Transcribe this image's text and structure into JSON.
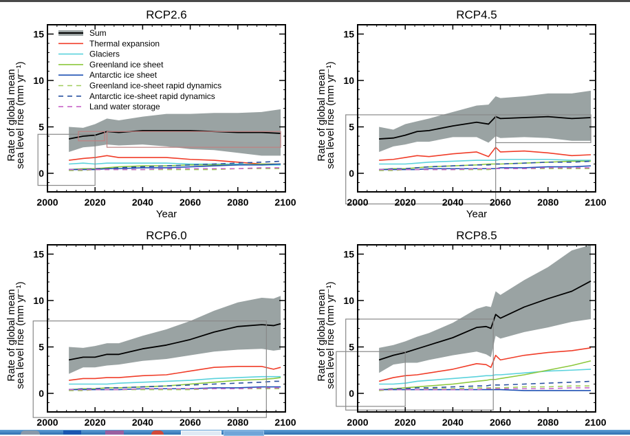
{
  "window": {
    "top_bar_color": "#4a4a4a",
    "taskbar_color": "#3a7fc2"
  },
  "chart_data": [
    {
      "type": "area",
      "title": "RCP2.6",
      "xlabel": "Year",
      "ylabel_line1": "Rate of global mean",
      "ylabel_line2": "sea level rise (mm yr⁻¹)",
      "xlim": [
        2000,
        2100
      ],
      "ylim": [
        -2,
        16
      ],
      "xticks": [
        2000,
        2020,
        2040,
        2060,
        2080,
        2100
      ],
      "yticks": [
        0,
        5,
        10,
        15
      ],
      "show_xlabel": true,
      "legend": true,
      "x": [
        2009,
        2015,
        2020,
        2025,
        2030,
        2040,
        2050,
        2060,
        2070,
        2080,
        2090,
        2098
      ],
      "band": {
        "name": "Sum range",
        "upper": [
          5.0,
          4.9,
          5.3,
          5.9,
          5.7,
          6.1,
          6.4,
          6.4,
          6.5,
          6.5,
          6.6,
          6.9
        ],
        "lower": [
          2.3,
          2.8,
          2.9,
          3.1,
          3.0,
          3.1,
          2.9,
          2.6,
          2.5,
          2.2,
          1.9,
          1.9
        ]
      },
      "series": [
        {
          "name": "Sum",
          "values": [
            3.7,
            4.0,
            4.1,
            4.5,
            4.4,
            4.6,
            4.6,
            4.6,
            4.5,
            4.4,
            4.4,
            4.3
          ]
        },
        {
          "name": "Thermal expansion",
          "values": [
            1.4,
            1.6,
            1.7,
            1.9,
            1.7,
            1.7,
            1.7,
            1.5,
            1.4,
            1.2,
            1.0,
            1.0
          ]
        },
        {
          "name": "Glaciers",
          "values": [
            1.0,
            1.1,
            1.0,
            1.1,
            1.1,
            1.1,
            1.1,
            1.0,
            1.0,
            1.0,
            0.9,
            0.9
          ]
        },
        {
          "name": "Greenland ice sheet",
          "values": [
            0.4,
            0.5,
            0.5,
            0.6,
            0.7,
            0.8,
            0.8,
            0.9,
            0.9,
            0.9,
            1.0,
            1.0
          ]
        },
        {
          "name": "Antarctic ice sheet",
          "values": [
            0.4,
            0.4,
            0.4,
            0.5,
            0.5,
            0.6,
            0.6,
            0.7,
            0.8,
            0.9,
            0.9,
            1.0
          ]
        },
        {
          "name": "Greenland ice-sheet rapid dynamics",
          "values": [
            0.3,
            0.3,
            0.4,
            0.4,
            0.4,
            0.4,
            0.4,
            0.4,
            0.4,
            0.5,
            0.5,
            0.5
          ]
        },
        {
          "name": "Antarctic ice-sheet rapid dynamics",
          "values": [
            0.4,
            0.4,
            0.5,
            0.5,
            0.6,
            0.7,
            0.8,
            0.9,
            1.0,
            1.1,
            1.2,
            1.3
          ]
        },
        {
          "name": "Land water storage",
          "values": [
            0.4,
            0.4,
            0.4,
            0.4,
            0.4,
            0.4,
            0.5,
            0.5,
            0.5,
            0.5,
            0.6,
            0.6
          ]
        }
      ],
      "overlay_boxes": [
        {
          "x0": 1996,
          "x1": 2020,
          "y0": -1.3,
          "y1": 4.2,
          "color": "#888888"
        },
        {
          "x0": 2013,
          "x1": 2024,
          "y0": 3.5,
          "y1": 4.5,
          "color": "#c08080"
        },
        {
          "x0": 2025,
          "x1": 2098,
          "y0": 2.8,
          "y1": 4.5,
          "color": "#c08080"
        }
      ]
    },
    {
      "type": "area",
      "title": "RCP4.5",
      "xlabel": "Year",
      "ylabel_line1": "Rate of global mean",
      "ylabel_line2": "sea level rise (mm yr⁻¹)",
      "xlim": [
        2000,
        2100
      ],
      "ylim": [
        -2,
        16
      ],
      "xticks": [
        2000,
        2020,
        2040,
        2060,
        2080,
        2100
      ],
      "yticks": [
        0,
        5,
        10,
        15
      ],
      "show_xlabel": true,
      "legend": false,
      "x": [
        2009,
        2015,
        2020,
        2025,
        2030,
        2040,
        2050,
        2055,
        2058,
        2060,
        2070,
        2080,
        2090,
        2098
      ],
      "band": {
        "name": "Sum range",
        "upper": [
          5.0,
          4.7,
          5.3,
          5.6,
          5.9,
          6.6,
          7.3,
          7.4,
          8.3,
          8.1,
          8.3,
          8.6,
          8.6,
          8.9
        ],
        "lower": [
          2.3,
          2.9,
          3.1,
          3.4,
          3.4,
          3.9,
          3.9,
          3.3,
          4.0,
          3.8,
          3.9,
          3.8,
          3.5,
          3.5
        ]
      },
      "series": [
        {
          "name": "Sum",
          "values": [
            3.7,
            3.8,
            4.1,
            4.5,
            4.6,
            5.1,
            5.5,
            5.3,
            6.1,
            5.9,
            6.0,
            6.1,
            5.9,
            6.0
          ]
        },
        {
          "name": "Thermal expansion",
          "values": [
            1.4,
            1.5,
            1.7,
            1.9,
            1.8,
            2.1,
            2.3,
            1.8,
            2.8,
            2.3,
            2.4,
            2.2,
            1.9,
            2.0
          ]
        },
        {
          "name": "Glaciers",
          "values": [
            1.0,
            1.0,
            1.0,
            1.1,
            1.2,
            1.3,
            1.4,
            1.4,
            1.4,
            1.5,
            1.5,
            1.5,
            1.4,
            1.4
          ]
        },
        {
          "name": "Greenland ice sheet",
          "values": [
            0.4,
            0.5,
            0.5,
            0.6,
            0.7,
            0.8,
            0.9,
            1.0,
            1.0,
            1.0,
            1.1,
            1.2,
            1.3,
            1.3
          ]
        },
        {
          "name": "Antarctic ice sheet",
          "values": [
            0.4,
            0.4,
            0.4,
            0.4,
            0.5,
            0.5,
            0.5,
            0.5,
            0.5,
            0.6,
            0.6,
            0.7,
            0.7,
            0.8
          ]
        },
        {
          "name": "Greenland ice-sheet rapid dynamics",
          "values": [
            0.3,
            0.3,
            0.4,
            0.4,
            0.4,
            0.4,
            0.4,
            0.4,
            0.5,
            0.5,
            0.5,
            0.5,
            0.5,
            0.5
          ]
        },
        {
          "name": "Antarctic ice-sheet rapid dynamics",
          "values": [
            0.4,
            0.5,
            0.5,
            0.6,
            0.7,
            0.8,
            0.9,
            0.9,
            1.0,
            1.0,
            1.1,
            1.2,
            1.2,
            1.3
          ]
        },
        {
          "name": "Land water storage",
          "values": [
            0.4,
            0.4,
            0.4,
            0.4,
            0.4,
            0.4,
            0.5,
            0.5,
            0.5,
            0.5,
            0.5,
            0.6,
            0.6,
            0.6
          ]
        }
      ],
      "overlay_boxes": [
        {
          "x0": 1995,
          "x1": 2058,
          "y0": -3.3,
          "y1": 6.3,
          "color": "#888888"
        },
        {
          "x0": 2058,
          "x1": 2098,
          "y0": 3.3,
          "y1": 6.3,
          "color": "#888888"
        }
      ]
    },
    {
      "type": "area",
      "title": "RCP6.0",
      "xlabel": "",
      "ylabel_line1": "Rate of global mean",
      "ylabel_line2": "sea level rise (mm yr⁻¹)",
      "xlim": [
        2000,
        2100
      ],
      "ylim": [
        -2,
        16
      ],
      "xticks": [
        2000,
        2020,
        2040,
        2060,
        2080,
        2100
      ],
      "yticks": [
        0,
        5,
        10,
        15
      ],
      "show_xlabel": false,
      "legend": false,
      "x": [
        2009,
        2015,
        2020,
        2025,
        2030,
        2040,
        2050,
        2060,
        2070,
        2080,
        2090,
        2095,
        2098
      ],
      "band": {
        "name": "Sum range",
        "upper": [
          5.0,
          4.9,
          5.1,
          5.4,
          5.4,
          6.2,
          6.9,
          7.8,
          8.9,
          9.8,
          10.3,
          10.2,
          10.5
        ],
        "lower": [
          2.1,
          2.8,
          2.8,
          3.0,
          3.1,
          3.5,
          3.7,
          4.1,
          4.5,
          4.7,
          4.8,
          4.6,
          4.7
        ]
      },
      "series": [
        {
          "name": "Sum",
          "values": [
            3.6,
            3.9,
            3.9,
            4.2,
            4.2,
            4.8,
            5.2,
            5.8,
            6.6,
            7.2,
            7.4,
            7.3,
            7.5
          ]
        },
        {
          "name": "Thermal expansion",
          "values": [
            1.4,
            1.6,
            1.6,
            1.7,
            1.7,
            1.9,
            2.0,
            2.4,
            2.8,
            2.9,
            2.9,
            2.6,
            2.8
          ]
        },
        {
          "name": "Glaciers",
          "values": [
            1.0,
            1.0,
            1.0,
            1.0,
            1.1,
            1.2,
            1.3,
            1.4,
            1.6,
            1.7,
            1.8,
            1.8,
            1.8
          ]
        },
        {
          "name": "Greenland ice sheet",
          "values": [
            0.4,
            0.5,
            0.5,
            0.6,
            0.6,
            0.7,
            0.8,
            1.0,
            1.2,
            1.4,
            1.5,
            1.6,
            1.7
          ]
        },
        {
          "name": "Antarctic ice sheet",
          "values": [
            0.4,
            0.4,
            0.4,
            0.4,
            0.4,
            0.5,
            0.5,
            0.5,
            0.6,
            0.6,
            0.7,
            0.7,
            0.7
          ]
        },
        {
          "name": "Greenland ice-sheet rapid dynamics",
          "values": [
            0.3,
            0.3,
            0.4,
            0.4,
            0.4,
            0.4,
            0.4,
            0.4,
            0.5,
            0.5,
            0.5,
            0.5,
            0.5
          ]
        },
        {
          "name": "Antarctic ice-sheet rapid dynamics",
          "values": [
            0.4,
            0.5,
            0.5,
            0.6,
            0.6,
            0.7,
            0.8,
            0.9,
            1.0,
            1.1,
            1.2,
            1.3,
            1.3
          ]
        },
        {
          "name": "Land water storage",
          "values": [
            0.4,
            0.4,
            0.4,
            0.4,
            0.4,
            0.5,
            0.5,
            0.5,
            0.5,
            0.5,
            0.6,
            0.6,
            0.6
          ]
        }
      ],
      "overlay_boxes": [
        {
          "x0": 1994,
          "x1": 2092,
          "y0": -2.6,
          "y1": 7.8,
          "color": "#888888"
        }
      ]
    },
    {
      "type": "area",
      "title": "RCP8.5",
      "xlabel": "",
      "ylabel_line1": "Rate of global mean",
      "ylabel_line2": "sea level rise (mm yr⁻¹)",
      "xlim": [
        2000,
        2100
      ],
      "ylim": [
        -2,
        16
      ],
      "xticks": [
        2000,
        2020,
        2040,
        2060,
        2080,
        2100
      ],
      "yticks": [
        0,
        5,
        10,
        15
      ],
      "show_xlabel": false,
      "legend": false,
      "x": [
        2009,
        2015,
        2020,
        2025,
        2030,
        2040,
        2050,
        2054,
        2056,
        2058,
        2060,
        2070,
        2080,
        2090,
        2098
      ],
      "band": {
        "name": "Sum range",
        "upper": [
          4.9,
          5.2,
          5.6,
          6.1,
          6.5,
          7.6,
          9.1,
          9.4,
          9.3,
          11.0,
          10.6,
          12.2,
          13.6,
          15.4,
          16.0
        ],
        "lower": [
          2.2,
          3.1,
          3.3,
          3.3,
          3.6,
          4.1,
          4.5,
          4.2,
          3.9,
          6.2,
          5.9,
          6.6,
          7.1,
          7.7,
          8.0
        ]
      },
      "series": [
        {
          "name": "Sum",
          "values": [
            3.6,
            4.1,
            4.4,
            4.8,
            5.2,
            6.0,
            7.1,
            7.2,
            7.0,
            8.5,
            8.1,
            9.3,
            10.2,
            11.0,
            12.1
          ]
        },
        {
          "name": "Thermal expansion",
          "values": [
            1.3,
            1.7,
            1.9,
            2.0,
            2.2,
            2.6,
            3.2,
            3.1,
            2.8,
            4.1,
            3.6,
            4.1,
            4.4,
            4.6,
            4.9
          ]
        },
        {
          "name": "Glaciers",
          "values": [
            1.0,
            1.0,
            1.1,
            1.3,
            1.4,
            1.6,
            1.8,
            1.9,
            1.9,
            2.0,
            2.0,
            2.2,
            2.4,
            2.5,
            2.6
          ]
        },
        {
          "name": "Greenland ice sheet",
          "values": [
            0.4,
            0.5,
            0.6,
            0.7,
            0.8,
            1.0,
            1.3,
            1.4,
            1.5,
            1.5,
            1.6,
            2.0,
            2.5,
            3.0,
            3.5
          ]
        },
        {
          "name": "Antarctic ice sheet",
          "values": [
            0.4,
            0.4,
            0.4,
            0.4,
            0.4,
            0.4,
            0.4,
            0.4,
            0.4,
            0.4,
            0.4,
            0.3,
            0.3,
            0.3,
            0.3
          ]
        },
        {
          "name": "Greenland ice-sheet rapid dynamics",
          "values": [
            0.3,
            0.4,
            0.4,
            0.4,
            0.5,
            0.5,
            0.6,
            0.6,
            0.6,
            0.6,
            0.6,
            0.7,
            0.7,
            0.8,
            0.8
          ]
        },
        {
          "name": "Antarctic ice-sheet rapid dynamics",
          "values": [
            0.4,
            0.5,
            0.5,
            0.6,
            0.6,
            0.7,
            0.8,
            0.8,
            0.9,
            0.9,
            0.9,
            1.0,
            1.1,
            1.2,
            1.3
          ]
        },
        {
          "name": "Land water storage",
          "values": [
            0.4,
            0.4,
            0.4,
            0.4,
            0.4,
            0.4,
            0.4,
            0.5,
            0.5,
            0.5,
            0.5,
            0.5,
            0.5,
            0.6,
            0.6
          ]
        }
      ],
      "overlay_boxes": [
        {
          "x0": 1995,
          "x1": 2057,
          "y0": -1.8,
          "y1": 8.0,
          "color": "#888888"
        },
        {
          "x0": 1991,
          "x1": 2020,
          "y0": -1.4,
          "y1": 4.5,
          "color": "#888888"
        }
      ]
    }
  ],
  "legend": {
    "items": [
      {
        "label": "Sum",
        "color": "#000000",
        "band_color": "#9aa3a3",
        "dash": false,
        "band": true
      },
      {
        "label": "Thermal expansion",
        "color": "#f03c28",
        "dash": false
      },
      {
        "label": "Glaciers",
        "color": "#5ad2dc",
        "dash": false
      },
      {
        "label": "Greenland ice sheet",
        "color": "#8cc83c",
        "dash": false
      },
      {
        "label": "Antarctic ice sheet",
        "color": "#1e50b4",
        "dash": false
      },
      {
        "label": "Greenland ice-sheet rapid dynamics",
        "color": "#a0cc5a",
        "dash": true
      },
      {
        "label": "Antarctic ice-sheet rapid dynamics",
        "color": "#2850a0",
        "dash": true
      },
      {
        "label": "Land water storage",
        "color": "#c864c8",
        "dash": true
      }
    ]
  },
  "colors": {
    "band": "#9aa3a3",
    "frame": "#000000"
  }
}
